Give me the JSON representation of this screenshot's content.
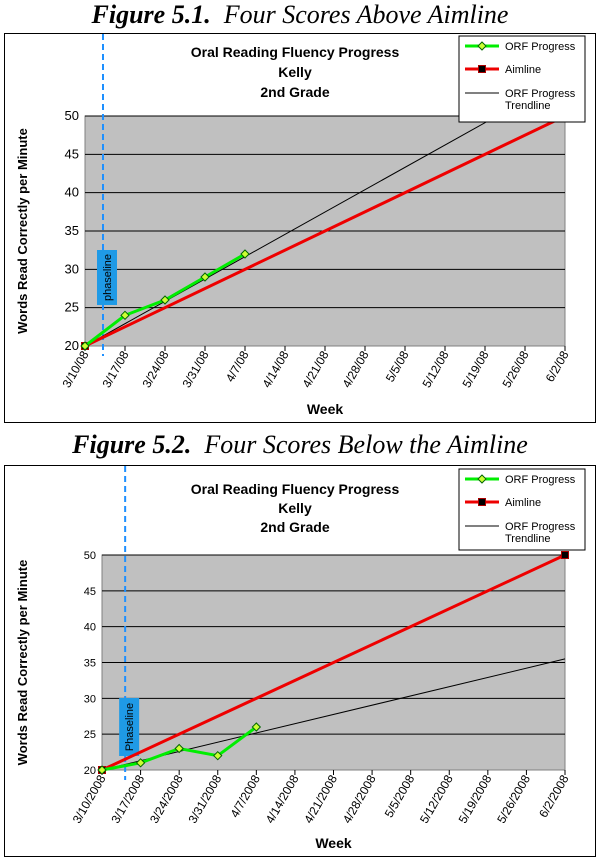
{
  "figures": [
    {
      "caption_label": "Figure 5.1.",
      "caption_title": "Four Scores Above Aimline",
      "chart_data": {
        "type": "line",
        "title": "Oral Reading Fluency Progress",
        "subtitle_1": "Kelly",
        "subtitle_2": "2nd Grade",
        "xlabel": "Week",
        "ylabel": "Words Read Correctly per Minute",
        "categories": [
          "3/10/08",
          "3/17/08",
          "3/24/08",
          "3/31/08",
          "4/7/08",
          "4/14/08",
          "4/21/08",
          "4/28/08",
          "5/5/08",
          "5/12/08",
          "5/19/08",
          "5/26/08",
          "6/2/08"
        ],
        "ylim": [
          20,
          50
        ],
        "yticks": [
          20,
          25,
          30,
          35,
          40,
          45,
          50
        ],
        "grid": true,
        "legend_position": "top-right",
        "phaseline_label": "phaseline",
        "phaseline_x": 0.45,
        "series": [
          {
            "name": "ORF Progress",
            "color": "#00ee00",
            "marker": "diamond",
            "points": [
              [
                0,
                20
              ],
              [
                1,
                24
              ],
              [
                2,
                26
              ],
              [
                3,
                29
              ],
              [
                4,
                32
              ]
            ]
          },
          {
            "name": "Aimline",
            "color": "#ee0000",
            "marker": "square",
            "points": [
              [
                0,
                20
              ],
              [
                12,
                50
              ]
            ]
          },
          {
            "name": "ORF Progress Trendline",
            "color": "#000000",
            "marker": "none",
            "points": [
              [
                0,
                20
              ],
              [
                10.3,
                50
              ]
            ]
          }
        ]
      }
    },
    {
      "caption_label": "Figure 5.2.",
      "caption_title": "Four Scores Below the Aimline",
      "chart_data": {
        "type": "line",
        "title": "Oral Reading Fluency Progress",
        "subtitle_1": "Kelly",
        "subtitle_2": "2nd Grade",
        "xlabel": "Week",
        "ylabel": "Words Read Correctly per Minute",
        "categories": [
          "3/10/2008",
          "3/17/2008",
          "3/24/2008",
          "3/31/2008",
          "4/7/2008",
          "4/14/2008",
          "4/21/2008",
          "4/28/2008",
          "5/5/2008",
          "5/12/2008",
          "5/19/2008",
          "5/26/2008",
          "6/2/2008"
        ],
        "ylim": [
          20,
          50
        ],
        "yticks": [
          20,
          25,
          30,
          35,
          40,
          45,
          50
        ],
        "grid": true,
        "legend_position": "top-right",
        "phaseline_label": "Phaseline",
        "phaseline_x": 0.6,
        "series": [
          {
            "name": "ORF Progress",
            "color": "#00ee00",
            "marker": "diamond",
            "points": [
              [
                0,
                20
              ],
              [
                1,
                21
              ],
              [
                2,
                23
              ],
              [
                3,
                22
              ],
              [
                4,
                26
              ]
            ]
          },
          {
            "name": "Aimline",
            "color": "#ee0000",
            "marker": "square",
            "points": [
              [
                0,
                20
              ],
              [
                12,
                50
              ]
            ]
          },
          {
            "name": "ORF Progress Trendline",
            "color": "#000000",
            "marker": "none",
            "points": [
              [
                0,
                20
              ],
              [
                12,
                35.5
              ]
            ]
          }
        ]
      }
    }
  ]
}
